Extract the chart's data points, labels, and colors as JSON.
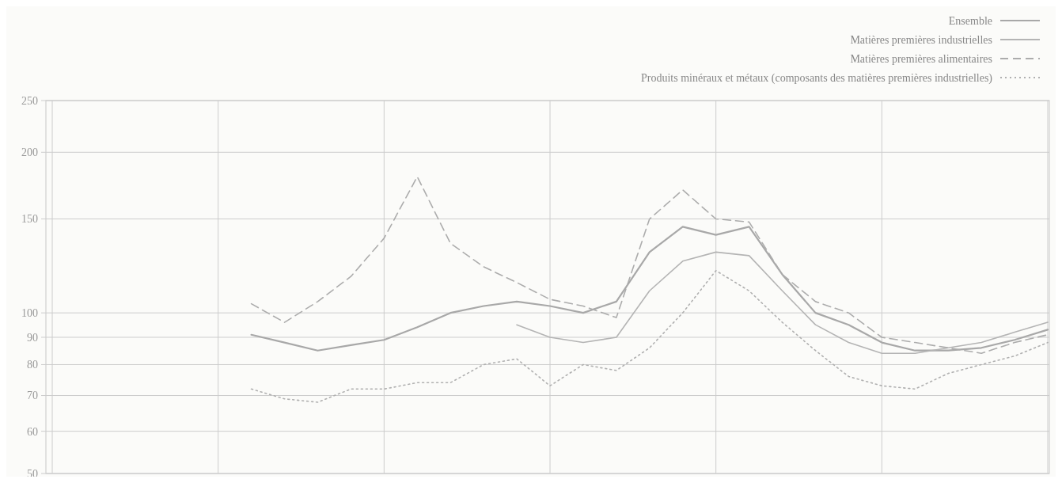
{
  "chart_data": {
    "type": "line",
    "log": true,
    "grid": true,
    "legend": "top right",
    "categories": [
      null,
      null,
      null,
      null,
      null,
      null,
      null,
      null,
      null,
      null,
      null,
      null,
      null,
      null,
      null,
      null,
      null,
      null,
      null,
      null,
      null,
      null,
      null,
      null,
      null,
      null,
      null,
      null,
      null,
      null,
      null
    ],
    "ylim": [
      50,
      250
    ],
    "yticks": [
      50,
      60,
      70,
      80,
      90,
      100,
      150,
      200,
      250
    ],
    "series": [
      {
        "name": "Ensemble",
        "color": "#a8a8a8",
        "line_style": "solid",
        "values": [
          null,
          null,
          null,
          null,
          null,
          null,
          91,
          88,
          85,
          87,
          89,
          94,
          100,
          103,
          105,
          103,
          100,
          105,
          130,
          145,
          140,
          145,
          118,
          100,
          95,
          88,
          85,
          85,
          86,
          89,
          93
        ]
      },
      {
        "name": "Matières premières industrielles",
        "color": "#b4b4b4",
        "line_style": "solid",
        "values": [
          null,
          null,
          null,
          null,
          null,
          null,
          null,
          null,
          null,
          null,
          null,
          null,
          null,
          null,
          95,
          90,
          88,
          90,
          110,
          125,
          130,
          128,
          110,
          95,
          88,
          84,
          84,
          86,
          88,
          92,
          96
        ]
      },
      {
        "name": "Matières premières alimentaires",
        "color": "#acacac",
        "line_style": "dashed",
        "values": [
          null,
          null,
          null,
          null,
          null,
          null,
          104,
          96,
          105,
          117,
          138,
          180,
          135,
          122,
          114,
          106,
          103,
          98,
          150,
          170,
          150,
          148,
          118,
          105,
          100,
          90,
          88,
          86,
          84,
          88,
          91
        ]
      },
      {
        "name": "Produits minéraux et métaux (composants des matières premières industrielles)",
        "color": "#b0b0b0",
        "line_style": "dotted",
        "values": [
          null,
          null,
          null,
          null,
          null,
          null,
          72,
          69,
          68,
          72,
          72,
          74,
          74,
          80,
          82,
          73,
          80,
          78,
          86,
          100,
          120,
          110,
          96,
          85,
          76,
          73,
          72,
          77,
          80,
          83,
          88
        ]
      }
    ]
  }
}
